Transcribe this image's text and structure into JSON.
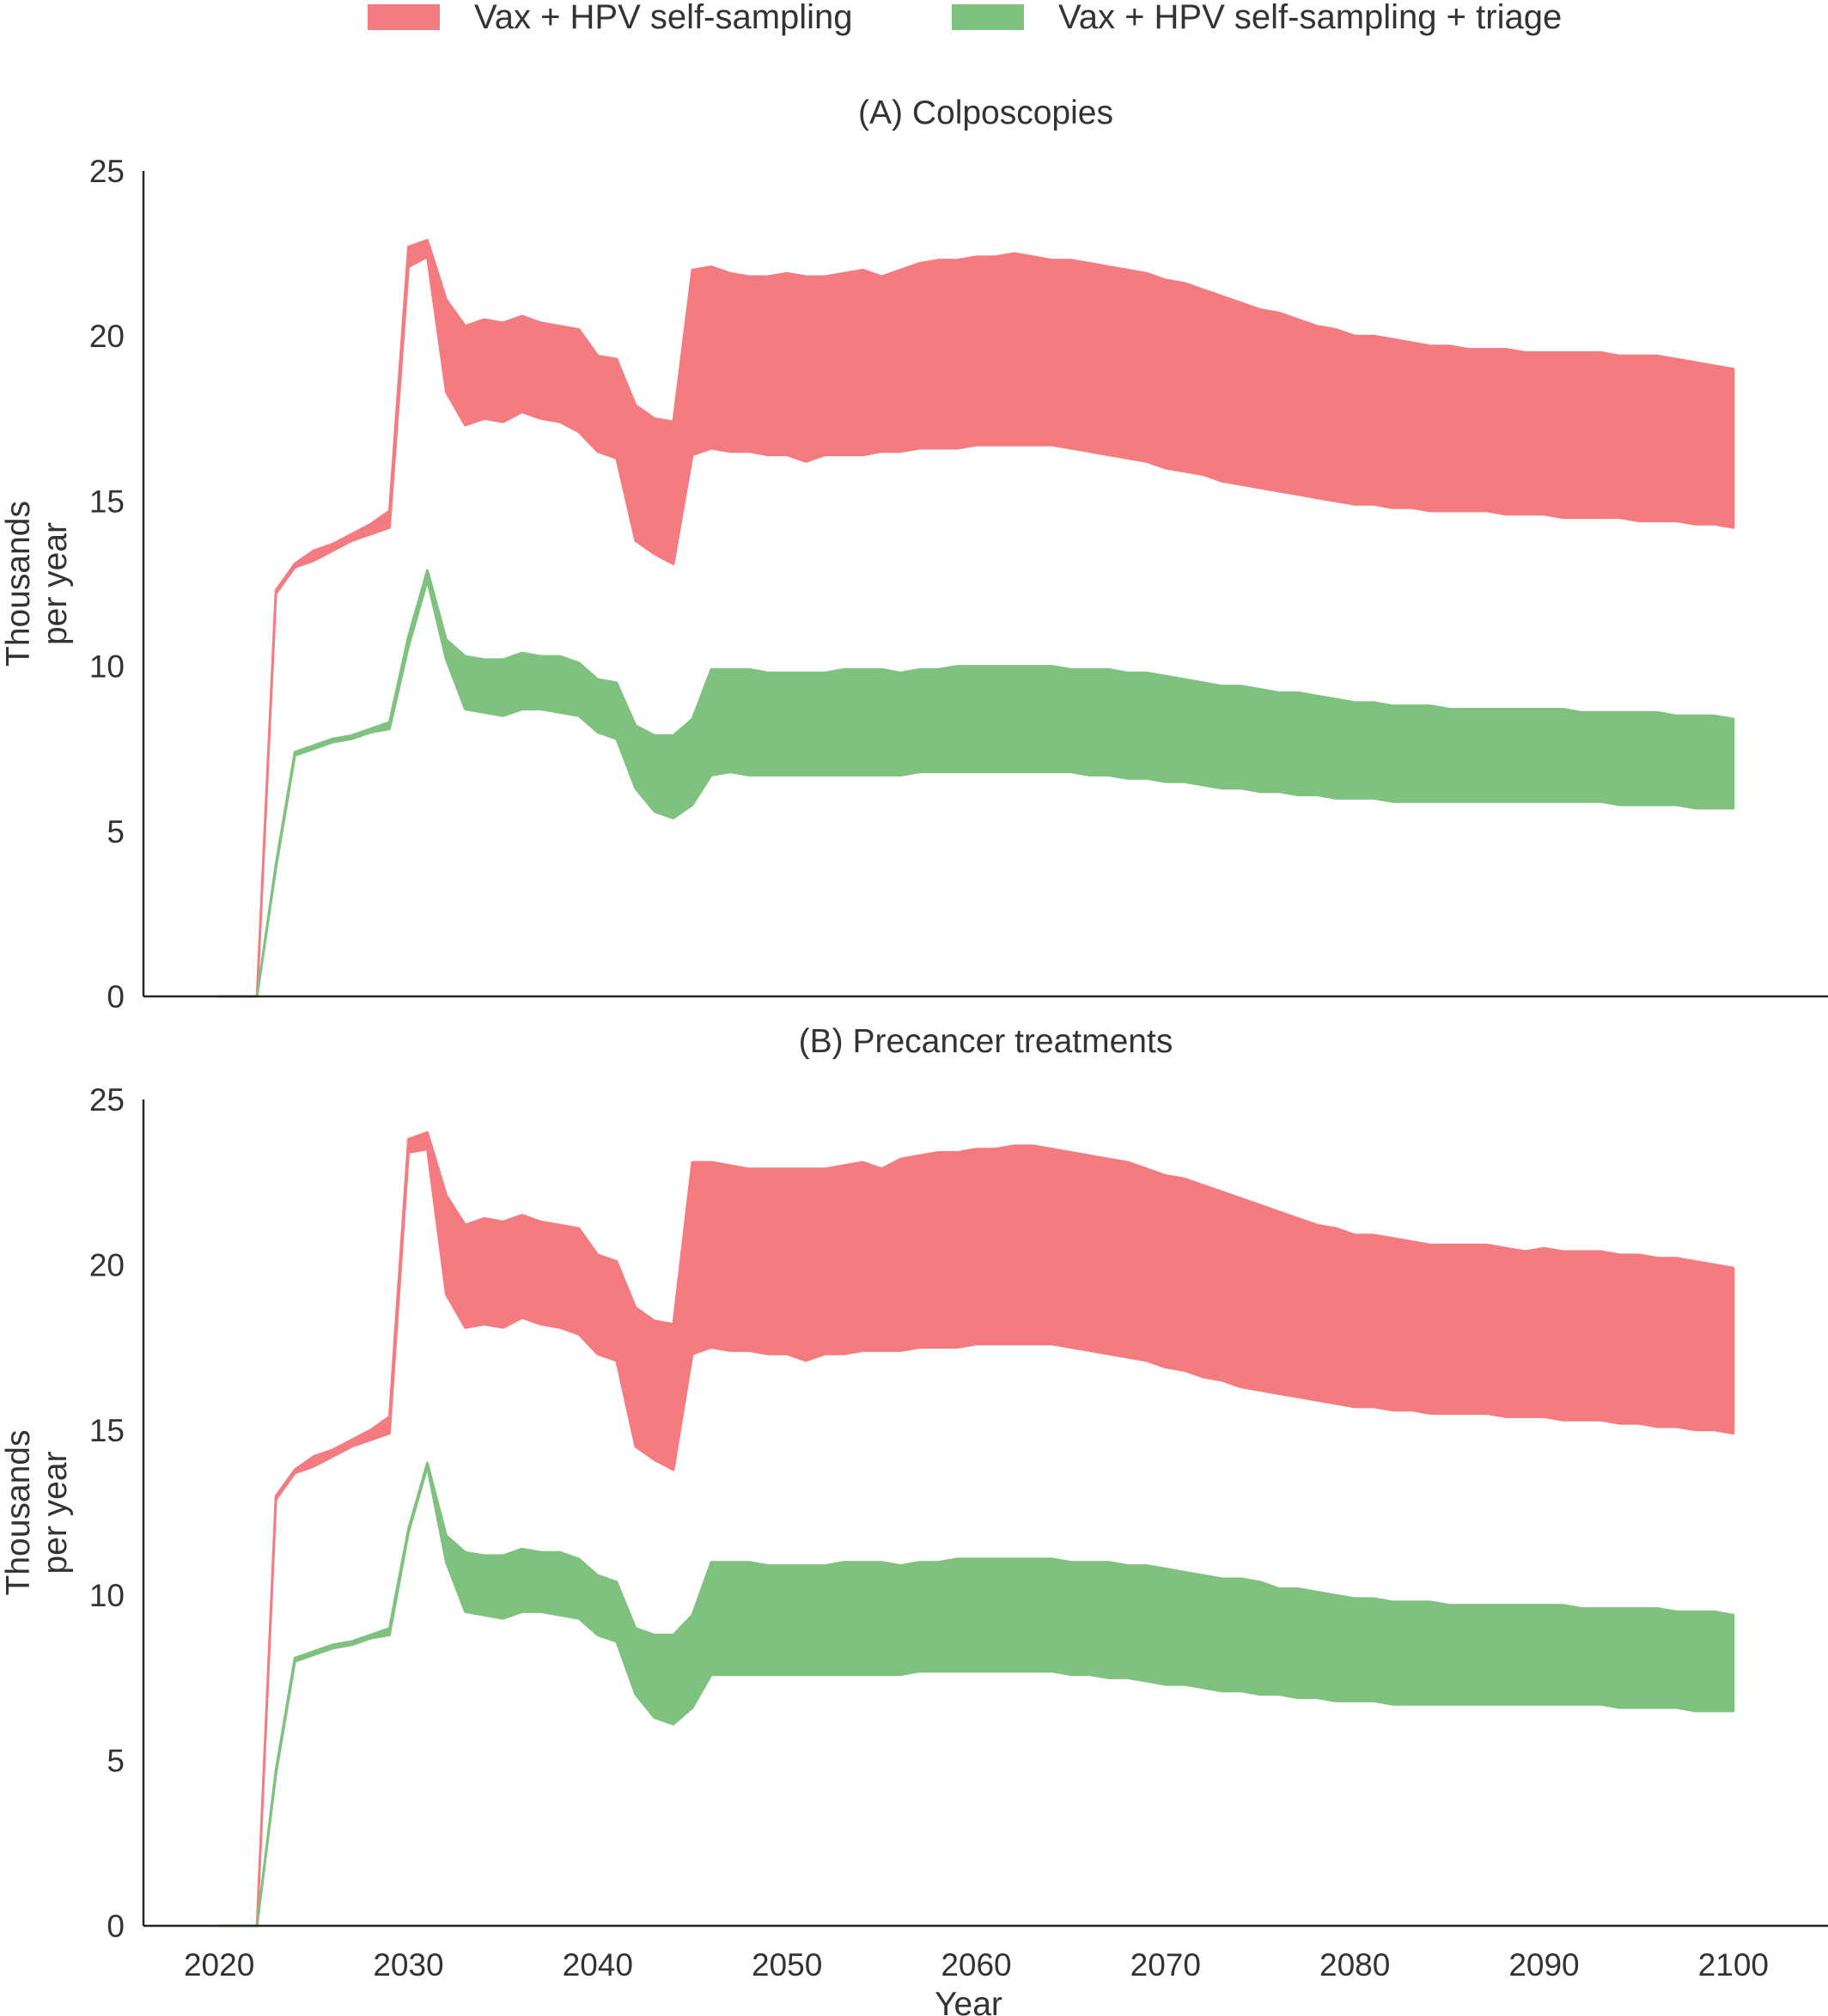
{
  "colors": {
    "series1": "#f47b7f",
    "series2": "#7fc17f",
    "axis": "#262626",
    "text": "#333333"
  },
  "legend": {
    "position": "top-center",
    "items": [
      {
        "label": "Vax + HPV self-sampling",
        "color": "#f47b7f"
      },
      {
        "label": "Vax + HPV self-sampling + triage",
        "color": "#7fc17f"
      }
    ]
  },
  "chart_data": [
    {
      "type": "area",
      "title": "(A) Colposcopies",
      "ylabel": "Thousands\nper year",
      "xlabel": "",
      "xlim": [
        2016,
        2105
      ],
      "ylim": [
        0,
        25
      ],
      "yticks": [
        0,
        5,
        10,
        15,
        20,
        25
      ],
      "xticks": [],
      "grid": false,
      "series": [
        {
          "name": "Vax + HPV self-sampling",
          "color": "#f47b7f",
          "x": [
            2020,
            2022,
            2023,
            2024,
            2025,
            2026,
            2027,
            2028,
            2029,
            2030,
            2031,
            2032,
            2033,
            2034,
            2035,
            2036,
            2037,
            2038,
            2039,
            2040,
            2041,
            2042,
            2043,
            2044,
            2045,
            2046,
            2047,
            2048,
            2049,
            2050,
            2051,
            2052,
            2053,
            2054,
            2055,
            2056,
            2057,
            2058,
            2059,
            2060,
            2061,
            2062,
            2063,
            2064,
            2065,
            2066,
            2067,
            2068,
            2069,
            2070,
            2071,
            2072,
            2073,
            2074,
            2075,
            2076,
            2077,
            2078,
            2079,
            2080,
            2081,
            2082,
            2083,
            2084,
            2085,
            2086,
            2087,
            2088,
            2089,
            2090,
            2091,
            2092,
            2093,
            2094,
            2095,
            2096,
            2097,
            2098,
            2099,
            2100
          ],
          "low": [
            0,
            0,
            12.2,
            13.0,
            13.2,
            13.5,
            13.8,
            14.0,
            14.2,
            22.1,
            22.4,
            18.3,
            17.3,
            17.5,
            17.4,
            17.7,
            17.5,
            17.4,
            17.1,
            16.5,
            16.3,
            13.8,
            13.4,
            13.1,
            16.4,
            16.6,
            16.5,
            16.5,
            16.4,
            16.4,
            16.2,
            16.4,
            16.4,
            16.4,
            16.5,
            16.5,
            16.6,
            16.6,
            16.6,
            16.7,
            16.7,
            16.7,
            16.7,
            16.7,
            16.6,
            16.5,
            16.4,
            16.3,
            16.2,
            16.0,
            15.9,
            15.8,
            15.6,
            15.5,
            15.4,
            15.3,
            15.2,
            15.1,
            15.0,
            14.9,
            14.9,
            14.8,
            14.8,
            14.7,
            14.7,
            14.7,
            14.7,
            14.6,
            14.6,
            14.6,
            14.5,
            14.5,
            14.5,
            14.5,
            14.4,
            14.4,
            14.4,
            14.3,
            14.3,
            14.2
          ],
          "high": [
            0,
            0,
            12.3,
            13.1,
            13.5,
            13.7,
            14.0,
            14.3,
            14.7,
            22.7,
            22.9,
            21.1,
            20.3,
            20.5,
            20.4,
            20.6,
            20.4,
            20.3,
            20.2,
            19.4,
            19.3,
            17.9,
            17.5,
            17.4,
            22.0,
            22.1,
            21.9,
            21.8,
            21.8,
            21.9,
            21.8,
            21.8,
            21.9,
            22.0,
            21.8,
            22.0,
            22.2,
            22.3,
            22.3,
            22.4,
            22.4,
            22.5,
            22.4,
            22.3,
            22.3,
            22.2,
            22.1,
            22.0,
            21.9,
            21.7,
            21.6,
            21.4,
            21.2,
            21.0,
            20.8,
            20.7,
            20.5,
            20.3,
            20.2,
            20.0,
            20.0,
            19.9,
            19.8,
            19.7,
            19.7,
            19.6,
            19.6,
            19.6,
            19.5,
            19.5,
            19.5,
            19.5,
            19.5,
            19.4,
            19.4,
            19.4,
            19.3,
            19.2,
            19.1,
            19.0
          ]
        },
        {
          "name": "Vax + HPV self-sampling + triage",
          "color": "#7fc17f",
          "x": [
            2020,
            2022,
            2023,
            2024,
            2025,
            2026,
            2027,
            2028,
            2029,
            2030,
            2031,
            2032,
            2033,
            2034,
            2035,
            2036,
            2037,
            2038,
            2039,
            2040,
            2041,
            2042,
            2043,
            2044,
            2045,
            2046,
            2047,
            2048,
            2049,
            2050,
            2051,
            2052,
            2053,
            2054,
            2055,
            2056,
            2057,
            2058,
            2059,
            2060,
            2061,
            2062,
            2063,
            2064,
            2065,
            2066,
            2067,
            2068,
            2069,
            2070,
            2071,
            2072,
            2073,
            2074,
            2075,
            2076,
            2077,
            2078,
            2079,
            2080,
            2081,
            2082,
            2083,
            2084,
            2085,
            2086,
            2087,
            2088,
            2089,
            2090,
            2091,
            2092,
            2093,
            2094,
            2095,
            2096,
            2097,
            2098,
            2099,
            2100
          ],
          "low": [
            0,
            0,
            3.9,
            7.3,
            7.5,
            7.7,
            7.8,
            8.0,
            8.1,
            10.6,
            12.6,
            10.2,
            8.7,
            8.6,
            8.5,
            8.7,
            8.7,
            8.6,
            8.5,
            8.0,
            7.8,
            6.3,
            5.6,
            5.4,
            5.8,
            6.7,
            6.8,
            6.7,
            6.7,
            6.7,
            6.7,
            6.7,
            6.7,
            6.7,
            6.7,
            6.7,
            6.8,
            6.8,
            6.8,
            6.8,
            6.8,
            6.8,
            6.8,
            6.8,
            6.8,
            6.7,
            6.7,
            6.6,
            6.6,
            6.5,
            6.5,
            6.4,
            6.3,
            6.3,
            6.2,
            6.2,
            6.1,
            6.1,
            6.0,
            6.0,
            6.0,
            5.9,
            5.9,
            5.9,
            5.9,
            5.9,
            5.9,
            5.9,
            5.9,
            5.9,
            5.9,
            5.9,
            5.9,
            5.8,
            5.8,
            5.8,
            5.8,
            5.7,
            5.7,
            5.7
          ],
          "high": [
            0,
            0,
            4.0,
            7.4,
            7.6,
            7.8,
            7.9,
            8.1,
            8.3,
            10.9,
            12.9,
            10.8,
            10.3,
            10.2,
            10.2,
            10.4,
            10.3,
            10.3,
            10.1,
            9.6,
            9.5,
            8.2,
            7.9,
            7.9,
            8.4,
            9.9,
            9.9,
            9.9,
            9.8,
            9.8,
            9.8,
            9.8,
            9.9,
            9.9,
            9.9,
            9.8,
            9.9,
            9.9,
            10.0,
            10.0,
            10.0,
            10.0,
            10.0,
            10.0,
            9.9,
            9.9,
            9.9,
            9.8,
            9.8,
            9.7,
            9.6,
            9.5,
            9.4,
            9.4,
            9.3,
            9.2,
            9.2,
            9.1,
            9.0,
            8.9,
            8.9,
            8.8,
            8.8,
            8.8,
            8.7,
            8.7,
            8.7,
            8.7,
            8.7,
            8.7,
            8.7,
            8.6,
            8.6,
            8.6,
            8.6,
            8.6,
            8.5,
            8.5,
            8.5,
            8.4
          ]
        }
      ]
    },
    {
      "type": "area",
      "title": "(B) Precancer treatments",
      "ylabel": "Thousands\nper year",
      "xlabel": "Year",
      "xlim": [
        2016,
        2105
      ],
      "ylim": [
        0,
        25
      ],
      "yticks": [
        0,
        5,
        10,
        15,
        20,
        25
      ],
      "xticks": [
        2020,
        2030,
        2040,
        2050,
        2060,
        2070,
        2080,
        2090,
        2100
      ],
      "grid": false,
      "series": [
        {
          "name": "Vax + HPV self-sampling",
          "color": "#f47b7f",
          "x": [
            2020,
            2022,
            2023,
            2024,
            2025,
            2026,
            2027,
            2028,
            2029,
            2030,
            2031,
            2032,
            2033,
            2034,
            2035,
            2036,
            2037,
            2038,
            2039,
            2040,
            2041,
            2042,
            2043,
            2044,
            2045,
            2046,
            2047,
            2048,
            2049,
            2050,
            2051,
            2052,
            2053,
            2054,
            2055,
            2056,
            2057,
            2058,
            2059,
            2060,
            2061,
            2062,
            2063,
            2064,
            2065,
            2066,
            2067,
            2068,
            2069,
            2070,
            2071,
            2072,
            2073,
            2074,
            2075,
            2076,
            2077,
            2078,
            2079,
            2080,
            2081,
            2082,
            2083,
            2084,
            2085,
            2086,
            2087,
            2088,
            2089,
            2090,
            2091,
            2092,
            2093,
            2094,
            2095,
            2096,
            2097,
            2098,
            2099,
            2100
          ],
          "low": [
            0,
            0,
            12.9,
            13.7,
            13.9,
            14.2,
            14.5,
            14.7,
            14.9,
            23.4,
            23.5,
            19.1,
            18.1,
            18.2,
            18.1,
            18.4,
            18.2,
            18.1,
            17.9,
            17.3,
            17.1,
            14.5,
            14.1,
            13.8,
            17.3,
            17.5,
            17.4,
            17.4,
            17.3,
            17.3,
            17.1,
            17.3,
            17.3,
            17.4,
            17.4,
            17.4,
            17.5,
            17.5,
            17.5,
            17.6,
            17.6,
            17.6,
            17.6,
            17.6,
            17.5,
            17.4,
            17.3,
            17.2,
            17.1,
            16.9,
            16.8,
            16.6,
            16.5,
            16.3,
            16.2,
            16.1,
            16.0,
            15.9,
            15.8,
            15.7,
            15.7,
            15.6,
            15.6,
            15.5,
            15.5,
            15.5,
            15.5,
            15.4,
            15.4,
            15.4,
            15.3,
            15.3,
            15.3,
            15.2,
            15.2,
            15.1,
            15.1,
            15.0,
            15.0,
            14.9
          ],
          "high": [
            0,
            0,
            13.0,
            13.8,
            14.2,
            14.4,
            14.7,
            15.0,
            15.4,
            23.8,
            24.0,
            22.1,
            21.2,
            21.4,
            21.3,
            21.5,
            21.3,
            21.2,
            21.1,
            20.3,
            20.1,
            18.7,
            18.3,
            18.2,
            23.1,
            23.1,
            23.0,
            22.9,
            22.9,
            22.9,
            22.9,
            22.9,
            23.0,
            23.1,
            22.9,
            23.2,
            23.3,
            23.4,
            23.4,
            23.5,
            23.5,
            23.6,
            23.6,
            23.5,
            23.4,
            23.3,
            23.2,
            23.1,
            22.9,
            22.7,
            22.6,
            22.4,
            22.2,
            22.0,
            21.8,
            21.6,
            21.4,
            21.2,
            21.1,
            20.9,
            20.9,
            20.8,
            20.7,
            20.6,
            20.6,
            20.6,
            20.6,
            20.5,
            20.4,
            20.5,
            20.4,
            20.4,
            20.4,
            20.3,
            20.3,
            20.2,
            20.2,
            20.1,
            20.0,
            19.9
          ]
        },
        {
          "name": "Vax + HPV self-sampling + triage",
          "color": "#7fc17f",
          "x": [
            2020,
            2022,
            2023,
            2024,
            2025,
            2026,
            2027,
            2028,
            2029,
            2030,
            2031,
            2032,
            2033,
            2034,
            2035,
            2036,
            2037,
            2038,
            2039,
            2040,
            2041,
            2042,
            2043,
            2044,
            2045,
            2046,
            2047,
            2048,
            2049,
            2050,
            2051,
            2052,
            2053,
            2054,
            2055,
            2056,
            2057,
            2058,
            2059,
            2060,
            2061,
            2062,
            2063,
            2064,
            2065,
            2066,
            2067,
            2068,
            2069,
            2070,
            2071,
            2072,
            2073,
            2074,
            2075,
            2076,
            2077,
            2078,
            2079,
            2080,
            2081,
            2082,
            2083,
            2084,
            2085,
            2086,
            2087,
            2088,
            2089,
            2090,
            2091,
            2092,
            2093,
            2094,
            2095,
            2096,
            2097,
            2098,
            2099,
            2100
          ],
          "low": [
            0,
            0,
            4.6,
            8.0,
            8.2,
            8.4,
            8.5,
            8.7,
            8.8,
            11.9,
            13.9,
            11.0,
            9.5,
            9.4,
            9.3,
            9.5,
            9.5,
            9.4,
            9.3,
            8.8,
            8.6,
            7.0,
            6.3,
            6.1,
            6.6,
            7.6,
            7.6,
            7.6,
            7.6,
            7.6,
            7.6,
            7.6,
            7.6,
            7.6,
            7.6,
            7.6,
            7.7,
            7.7,
            7.7,
            7.7,
            7.7,
            7.7,
            7.7,
            7.7,
            7.6,
            7.6,
            7.5,
            7.5,
            7.4,
            7.3,
            7.3,
            7.2,
            7.1,
            7.1,
            7.0,
            7.0,
            6.9,
            6.9,
            6.8,
            6.8,
            6.8,
            6.7,
            6.7,
            6.7,
            6.7,
            6.7,
            6.7,
            6.7,
            6.7,
            6.7,
            6.7,
            6.7,
            6.7,
            6.6,
            6.6,
            6.6,
            6.6,
            6.5,
            6.5,
            6.5
          ],
          "high": [
            0,
            0,
            4.7,
            8.1,
            8.3,
            8.5,
            8.6,
            8.8,
            9.0,
            12.0,
            14.0,
            11.8,
            11.3,
            11.2,
            11.2,
            11.4,
            11.3,
            11.3,
            11.1,
            10.6,
            10.4,
            9.0,
            8.8,
            8.8,
            9.4,
            11.0,
            11.0,
            11.0,
            10.9,
            10.9,
            10.9,
            10.9,
            11.0,
            11.0,
            11.0,
            10.9,
            11.0,
            11.0,
            11.1,
            11.1,
            11.1,
            11.1,
            11.1,
            11.1,
            11.0,
            11.0,
            11.0,
            10.9,
            10.9,
            10.8,
            10.7,
            10.6,
            10.5,
            10.5,
            10.4,
            10.2,
            10.2,
            10.1,
            10.0,
            9.9,
            9.9,
            9.8,
            9.8,
            9.8,
            9.7,
            9.7,
            9.7,
            9.7,
            9.7,
            9.7,
            9.7,
            9.6,
            9.6,
            9.6,
            9.6,
            9.6,
            9.5,
            9.5,
            9.5,
            9.4
          ]
        }
      ]
    }
  ]
}
